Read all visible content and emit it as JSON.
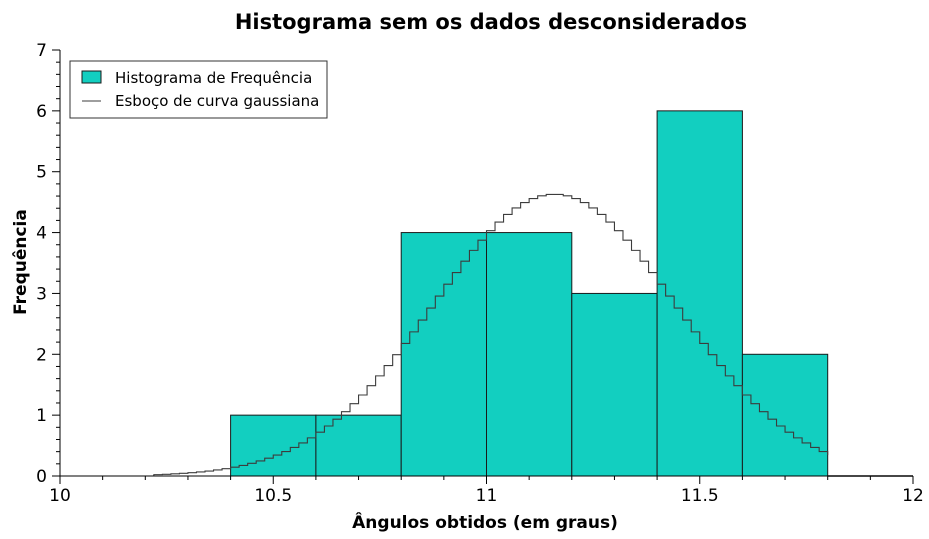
{
  "chart_data": {
    "type": "bar",
    "title": "Histograma sem os dados desconsiderados",
    "xlabel": "Ângulos obtidos (em graus)",
    "ylabel": "Frequência",
    "xlim": [
      10,
      12
    ],
    "ylim": [
      0,
      7
    ],
    "x_ticks": [
      "10",
      "10.5",
      "11",
      "11.5",
      "12"
    ],
    "x_tick_values": [
      10,
      10.5,
      11,
      11.5,
      12
    ],
    "y_ticks": [
      "0",
      "1",
      "2",
      "3",
      "4",
      "5",
      "6",
      "7"
    ],
    "y_tick_values": [
      0,
      1,
      2,
      3,
      4,
      5,
      6,
      7
    ],
    "bins": [
      {
        "from": 10.4,
        "to": 10.6,
        "count": 1
      },
      {
        "from": 10.6,
        "to": 10.8,
        "count": 1
      },
      {
        "from": 10.8,
        "to": 11.0,
        "count": 4
      },
      {
        "from": 11.0,
        "to": 11.2,
        "count": 4
      },
      {
        "from": 11.2,
        "to": 11.4,
        "count": 3
      },
      {
        "from": 11.4,
        "to": 11.6,
        "count": 6
      },
      {
        "from": 11.6,
        "to": 11.8,
        "count": 2
      }
    ],
    "series": [
      {
        "name": "Histograma de Frequência",
        "kind": "histogram",
        "color": "#12cfc0"
      },
      {
        "name": "Esboço de curva gaussiana",
        "kind": "step-line",
        "color": "#3c3c3c"
      }
    ],
    "gaussian_curve": {
      "mean": 11.15,
      "peak": 4.63,
      "sigma": 0.285,
      "start": 10.22,
      "end": 11.8,
      "step": 0.02
    },
    "legend_position": "top-left",
    "grid": false
  }
}
